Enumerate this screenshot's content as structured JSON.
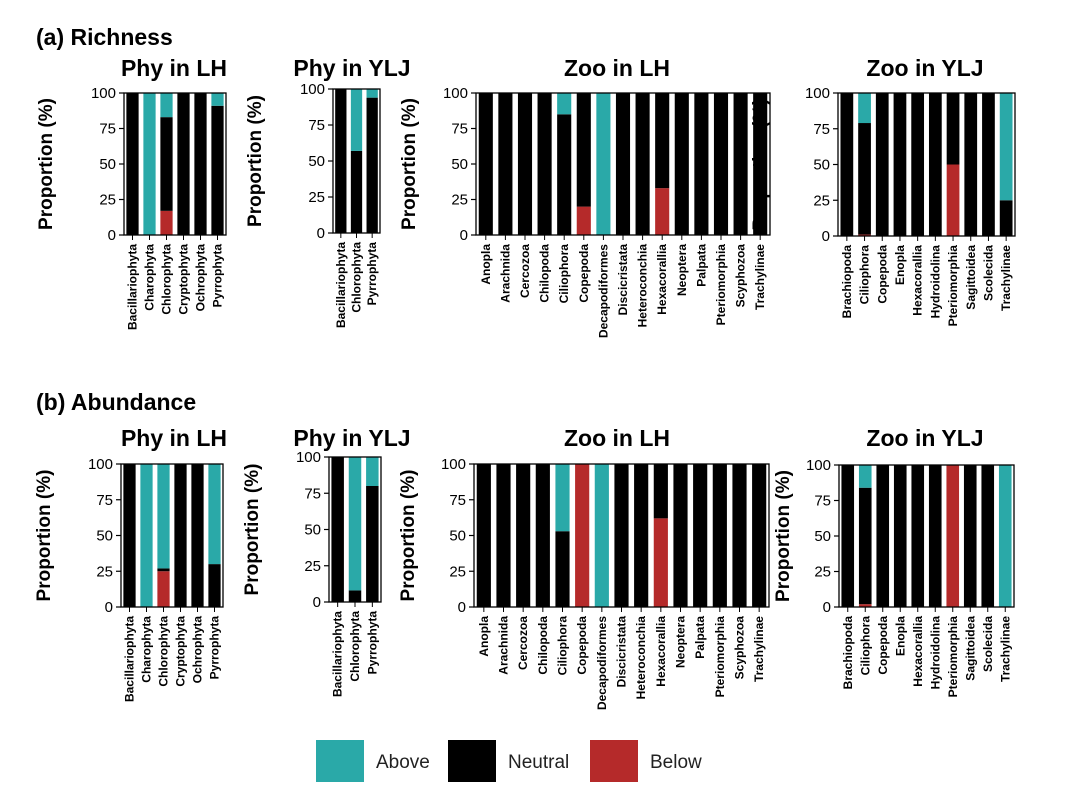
{
  "colors": {
    "above": "#2aa9a8",
    "neutral": "#000000",
    "below": "#b52a2a"
  },
  "sections": [
    {
      "label": "(a) Richness"
    },
    {
      "label": "(b) Abundance"
    }
  ],
  "legend": [
    {
      "key": "above",
      "label": "Above"
    },
    {
      "key": "neutral",
      "label": "Neutral"
    },
    {
      "key": "below",
      "label": "Below"
    }
  ],
  "chart_data": [
    {
      "type": "bar",
      "stacked": true,
      "section": "(a) Richness",
      "title": "Phy in LH",
      "ylabel": "Proportion (%)",
      "ylim": [
        0,
        100
      ],
      "yticks": [
        0,
        25,
        50,
        75,
        100
      ],
      "categories": [
        "Bacillariophyta",
        "Charophyta",
        "Chlorophyta",
        "Cryptophyta",
        "Ochrophyta",
        "Pyrrophyta"
      ],
      "series": [
        {
          "name": "Below",
          "values": [
            0,
            0,
            17,
            0,
            0,
            0
          ]
        },
        {
          "name": "Neutral",
          "values": [
            100,
            0,
            66,
            100,
            100,
            91
          ]
        },
        {
          "name": "Above",
          "values": [
            0,
            100,
            17,
            0,
            0,
            9
          ]
        }
      ]
    },
    {
      "type": "bar",
      "stacked": true,
      "section": "(a) Richness",
      "title": "Phy in YLJ",
      "ylabel": "Proportion (%)",
      "ylim": [
        0,
        100
      ],
      "yticks": [
        0,
        25,
        50,
        75,
        100
      ],
      "categories": [
        "Bacillariophyta",
        "Chlorophyta",
        "Pyrrophyta"
      ],
      "series": [
        {
          "name": "Below",
          "values": [
            0,
            0,
            0
          ]
        },
        {
          "name": "Neutral",
          "values": [
            100,
            57,
            94
          ]
        },
        {
          "name": "Above",
          "values": [
            0,
            43,
            6
          ]
        }
      ]
    },
    {
      "type": "bar",
      "stacked": true,
      "section": "(a) Richness",
      "title": "Zoo in LH",
      "ylabel": "Proportion (%)",
      "ylim": [
        0,
        100
      ],
      "yticks": [
        0,
        25,
        50,
        75,
        100
      ],
      "categories": [
        "Anopla",
        "Arachnida",
        "Cercozoa",
        "Chilopoda",
        "Ciliophora",
        "Copepoda",
        "Decapodiformes",
        "Discicristata",
        "Heteroconchia",
        "Hexacorallia",
        "Neoptera",
        "Palpata",
        "Pteriomorphia",
        "Scyphozoa",
        "Trachylinae"
      ],
      "series": [
        {
          "name": "Below",
          "values": [
            0,
            0,
            0,
            0,
            0,
            20,
            0,
            0,
            0,
            33,
            0,
            0,
            0,
            0,
            0
          ]
        },
        {
          "name": "Neutral",
          "values": [
            100,
            100,
            100,
            100,
            85,
            80,
            0,
            100,
            100,
            67,
            100,
            100,
            100,
            100,
            100
          ]
        },
        {
          "name": "Above",
          "values": [
            0,
            0,
            0,
            0,
            15,
            0,
            100,
            0,
            0,
            0,
            0,
            0,
            0,
            0,
            0
          ]
        }
      ]
    },
    {
      "type": "bar",
      "stacked": true,
      "section": "(a) Richness",
      "title": "Zoo in YLJ",
      "ylabel": "Proportion (%)",
      "ylim": [
        0,
        100
      ],
      "yticks": [
        0,
        25,
        50,
        75,
        100
      ],
      "categories": [
        "Brachiopoda",
        "Ciliophora",
        "Copepoda",
        "Enopla",
        "Hexacorallia",
        "Hydroidolina",
        "Pteriomorphia",
        "Sagittoidea",
        "Scolecida",
        "Trachylinae"
      ],
      "series": [
        {
          "name": "Below",
          "values": [
            0,
            1,
            0,
            0,
            0,
            0,
            50,
            0,
            0,
            0
          ]
        },
        {
          "name": "Neutral",
          "values": [
            100,
            78,
            100,
            100,
            100,
            100,
            50,
            100,
            100,
            25
          ]
        },
        {
          "name": "Above",
          "values": [
            0,
            21,
            0,
            0,
            0,
            0,
            0,
            0,
            0,
            75
          ]
        }
      ]
    },
    {
      "type": "bar",
      "stacked": true,
      "section": "(b) Abundance",
      "title": "Phy in LH",
      "ylabel": "Proportion (%)",
      "ylim": [
        0,
        100
      ],
      "yticks": [
        0,
        25,
        50,
        75,
        100
      ],
      "categories": [
        "Bacillariophyta",
        "Charophyta",
        "Chlorophyta",
        "Cryptophyta",
        "Ochrophyta",
        "Pyrrophyta"
      ],
      "series": [
        {
          "name": "Below",
          "values": [
            0,
            0,
            25,
            0,
            0,
            0
          ]
        },
        {
          "name": "Neutral",
          "values": [
            100,
            0,
            2,
            100,
            100,
            30
          ]
        },
        {
          "name": "Above",
          "values": [
            0,
            100,
            73,
            0,
            0,
            70
          ]
        }
      ]
    },
    {
      "type": "bar",
      "stacked": true,
      "section": "(b) Abundance",
      "title": "Phy in YLJ",
      "ylabel": "Proportion (%)",
      "ylim": [
        0,
        100
      ],
      "yticks": [
        0,
        25,
        50,
        75,
        100
      ],
      "categories": [
        "Bacillariophyta",
        "Chlorophyta",
        "Pyrrophyta"
      ],
      "series": [
        {
          "name": "Below",
          "values": [
            0,
            0,
            0
          ]
        },
        {
          "name": "Neutral",
          "values": [
            100,
            8,
            80
          ]
        },
        {
          "name": "Above",
          "values": [
            0,
            92,
            20
          ]
        }
      ]
    },
    {
      "type": "bar",
      "stacked": true,
      "section": "(b) Abundance",
      "title": "Zoo in LH",
      "ylabel": "Proportion (%)",
      "ylim": [
        0,
        100
      ],
      "yticks": [
        0,
        25,
        50,
        75,
        100
      ],
      "categories": [
        "Anopla",
        "Arachnida",
        "Cercozoa",
        "Chilopoda",
        "Ciliophora",
        "Copepoda",
        "Decapodiformes",
        "Discicristata",
        "Heteroconchia",
        "Hexacorallia",
        "Neoptera",
        "Palpata",
        "Pteriomorphia",
        "Scyphozoa",
        "Trachylinae"
      ],
      "series": [
        {
          "name": "Below",
          "values": [
            0,
            0,
            0,
            0,
            0,
            100,
            0,
            0,
            0,
            62,
            0,
            0,
            0,
            0,
            0
          ]
        },
        {
          "name": "Neutral",
          "values": [
            100,
            100,
            100,
            100,
            53,
            0,
            0,
            100,
            100,
            38,
            100,
            100,
            100,
            100,
            100
          ]
        },
        {
          "name": "Above",
          "values": [
            0,
            0,
            0,
            0,
            47,
            0,
            100,
            0,
            0,
            0,
            0,
            0,
            0,
            0,
            0
          ]
        }
      ]
    },
    {
      "type": "bar",
      "stacked": true,
      "section": "(b) Abundance",
      "title": "Zoo in YLJ",
      "ylabel": "Proportion (%)",
      "ylim": [
        0,
        100
      ],
      "yticks": [
        0,
        25,
        50,
        75,
        100
      ],
      "categories": [
        "Brachiopoda",
        "Ciliophora",
        "Copepoda",
        "Enopla",
        "Hexacorallia",
        "Hydroidolina",
        "Pteriomorphia",
        "Sagittoidea",
        "Scolecida",
        "Trachylinae"
      ],
      "series": [
        {
          "name": "Below",
          "values": [
            0,
            2,
            0,
            0,
            0,
            0,
            100,
            0,
            0,
            0
          ]
        },
        {
          "name": "Neutral",
          "values": [
            100,
            82,
            100,
            100,
            100,
            100,
            0,
            100,
            100,
            0
          ]
        },
        {
          "name": "Above",
          "values": [
            0,
            16,
            0,
            0,
            0,
            0,
            0,
            0,
            0,
            100
          ]
        }
      ]
    }
  ]
}
